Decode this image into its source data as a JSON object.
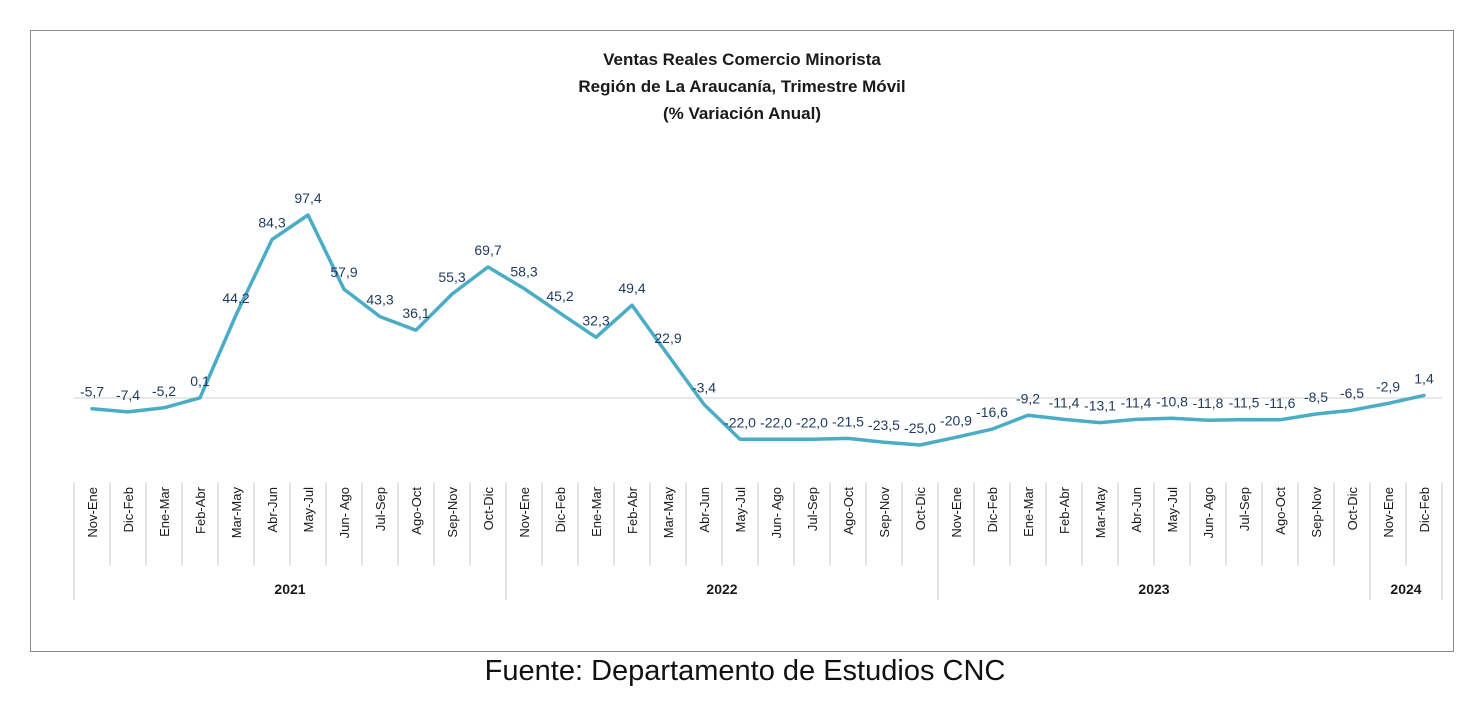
{
  "source": "Fuente: Departamento de Estudios CNC",
  "chart_data": {
    "type": "line",
    "title": [
      "Ventas Reales Comercio Minorista",
      "Región de La Araucanía, Trimestre Móvil",
      "(% Variación Anual)"
    ],
    "categories": [
      "Nov-Ene",
      "Dic-Feb",
      "Ene-Mar",
      "Feb-Abr",
      "Mar-May",
      "Abr-Jun",
      "May-Jul",
      "Jun- Ago",
      "Jul-Sep",
      "Ago-Oct",
      "Sep-Nov",
      "Oct-Dic",
      "Nov-Ene",
      "Dic-Feb",
      "Ene-Mar",
      "Feb-Abr",
      "Mar-May",
      "Abr-Jun",
      "May-Jul",
      "Jun- Ago",
      "Jul-Sep",
      "Ago-Oct",
      "Sep-Nov",
      "Oct-Dic",
      "Nov-Ene",
      "Dic-Feb",
      "Ene-Mar",
      "Feb-Abr",
      "Mar-May",
      "Abr-Jun",
      "May-Jul",
      "Jun- Ago",
      "Jul-Sep",
      "Ago-Oct",
      "Sep-Nov",
      "Oct-Dic",
      "Nov-Ene",
      "Dic-Feb"
    ],
    "years": [
      {
        "label": "2021",
        "count": 12
      },
      {
        "label": "2022",
        "count": 12
      },
      {
        "label": "2023",
        "count": 12
      },
      {
        "label": "2024",
        "count": 2
      }
    ],
    "series": [
      {
        "values": [
          -5.7,
          -7.4,
          -5.2,
          0.1,
          44.2,
          84.3,
          97.4,
          57.9,
          43.3,
          36.1,
          55.3,
          69.7,
          58.3,
          45.2,
          32.3,
          49.4,
          22.9,
          -3.4,
          -22.0,
          -22.0,
          -22.0,
          -21.5,
          -23.5,
          -25.0,
          -20.9,
          -16.6,
          -9.2,
          -11.4,
          -13.1,
          -11.4,
          -10.8,
          -11.8,
          -11.5,
          -11.6,
          -8.5,
          -6.5,
          -2.9,
          1.4
        ],
        "labels": [
          "-5,7",
          "-7,4",
          "-5,2",
          "0,1",
          "44,2",
          "84,3",
          "97,4",
          "57,9",
          "43,3",
          "36,1",
          "55,3",
          "69,7",
          "58,3",
          "45,2",
          "32,3",
          "49,4",
          "22,9",
          "-3,4",
          "-22,0",
          "-22,0",
          "-22,0",
          "-21,5",
          "-23,5",
          "-25,0",
          "-20,9",
          "-16,6",
          "-9,2",
          "-11,4",
          "-13,1",
          "-11,4",
          "-10,8",
          "-11,8",
          "-11,5",
          "-11,6",
          "-8,5",
          "-6,5",
          "-2,9",
          "1,4"
        ],
        "color": "#4bacc6"
      }
    ],
    "label_color": "#1f3a5f",
    "grid": false,
    "legend": "none"
  }
}
